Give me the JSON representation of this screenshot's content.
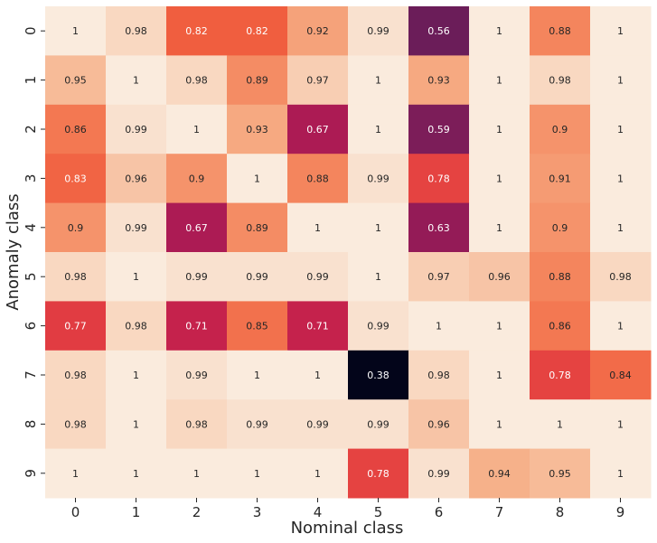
{
  "chart_data": {
    "type": "heatmap",
    "xlabel": "Nominal class",
    "ylabel": "Anomaly class",
    "x_categories": [
      "0",
      "1",
      "2",
      "3",
      "4",
      "5",
      "6",
      "7",
      "8",
      "9"
    ],
    "y_categories": [
      "0",
      "1",
      "2",
      "3",
      "4",
      "5",
      "6",
      "7",
      "8",
      "9"
    ],
    "values": [
      [
        1,
        0.98,
        0.82,
        0.82,
        0.92,
        0.99,
        0.56,
        1,
        0.88,
        1
      ],
      [
        0.95,
        1,
        0.98,
        0.89,
        0.97,
        1,
        0.93,
        1,
        0.98,
        1
      ],
      [
        0.86,
        0.99,
        1,
        0.93,
        0.67,
        1,
        0.59,
        1,
        0.9,
        1
      ],
      [
        0.83,
        0.96,
        0.9,
        1,
        0.88,
        0.99,
        0.78,
        1,
        0.91,
        1
      ],
      [
        0.9,
        0.99,
        0.67,
        0.89,
        1,
        1,
        0.63,
        1,
        0.9,
        1
      ],
      [
        0.98,
        1,
        0.99,
        0.99,
        0.99,
        1,
        0.97,
        0.96,
        0.88,
        0.98
      ],
      [
        0.77,
        0.98,
        0.71,
        0.85,
        0.71,
        0.99,
        1,
        1,
        0.86,
        1
      ],
      [
        0.98,
        1,
        0.99,
        1,
        1,
        0.38,
        0.98,
        1,
        0.78,
        0.84
      ],
      [
        0.98,
        1,
        0.98,
        0.99,
        0.99,
        0.99,
        0.96,
        1,
        1,
        1
      ],
      [
        1,
        1,
        1,
        1,
        1,
        0.78,
        0.99,
        0.94,
        0.95,
        1
      ]
    ],
    "vmin": 0.38,
    "vmax": 1,
    "colormap": "rocket",
    "colorbar": false,
    "annotations": true
  }
}
